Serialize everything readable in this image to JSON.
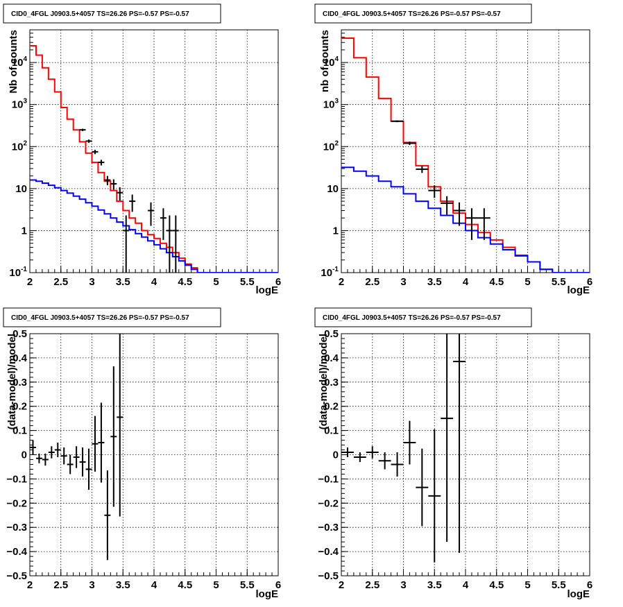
{
  "chart_data": [
    {
      "type": "line",
      "title": "CID0_4FGL J0903.5+4057 TS=26.26 PS=-0.57 PS=-0.57",
      "xlabel": "logE",
      "ylabel": "Nb of counts",
      "xlim": [
        2,
        6
      ],
      "ylim": [
        0.1,
        60000
      ],
      "yscale": "log",
      "grid": true,
      "x_ticks": [
        "2",
        "2.5",
        "3",
        "3.5",
        "4",
        "4.5",
        "5",
        "5.5",
        "6"
      ],
      "y_ticks": [
        {
          "base": "10",
          "exp": "-1"
        },
        {
          "base": "1",
          "exp": ""
        },
        {
          "base": "10",
          "exp": ""
        },
        {
          "base": "10",
          "exp": "2"
        },
        {
          "base": "10",
          "exp": "3"
        },
        {
          "base": "10",
          "exp": "4"
        }
      ],
      "bin_width": 0.1,
      "series": [
        {
          "color": "#ff0000",
          "style": "step",
          "x": [
            2.0,
            2.1,
            2.2,
            2.3,
            2.4,
            2.5,
            2.6,
            2.7,
            2.8,
            2.9,
            3.0,
            3.1,
            3.2,
            3.3,
            3.4,
            3.5,
            3.6,
            3.7,
            3.8,
            3.9,
            4.0,
            4.1,
            4.2,
            4.3,
            4.4,
            4.5,
            4.6,
            4.7,
            4.8,
            4.9,
            5.0,
            5.1,
            5.2,
            5.3,
            5.4,
            5.5,
            5.6,
            5.7,
            5.8,
            5.9
          ],
          "y": [
            25000,
            15000,
            7500,
            4000,
            2000,
            850,
            450,
            250,
            130,
            70,
            42,
            24,
            15,
            9,
            5,
            3,
            2,
            1.5,
            1,
            0.8,
            0.65,
            0.5,
            0.4,
            0.3,
            0.22,
            0.16,
            0.13,
            0.1,
            0.1,
            0.1,
            0.1,
            0.1,
            0.1,
            0.1,
            0.1,
            0.1,
            0.1,
            0.1,
            0.1,
            0.1
          ]
        },
        {
          "color": "#0000ff",
          "style": "step",
          "x": [
            2.0,
            2.1,
            2.2,
            2.3,
            2.4,
            2.5,
            2.6,
            2.7,
            2.8,
            2.9,
            3.0,
            3.1,
            3.2,
            3.3,
            3.4,
            3.5,
            3.6,
            3.7,
            3.8,
            3.9,
            4.0,
            4.1,
            4.2,
            4.3,
            4.4,
            4.5,
            4.6,
            4.7,
            4.8,
            4.9,
            5.0,
            5.1,
            5.2,
            5.3,
            5.4,
            5.5,
            5.6,
            5.7,
            5.8,
            5.9
          ],
          "y": [
            16,
            15,
            13.5,
            12,
            10.5,
            9,
            7.8,
            6.6,
            5.6,
            4.6,
            3.8,
            3.1,
            2.5,
            2,
            1.6,
            1.3,
            1.05,
            0.85,
            0.7,
            0.57,
            0.46,
            0.37,
            0.3,
            0.24,
            0.19,
            0.15,
            0.12,
            0.1,
            0.1,
            0.1,
            0.1,
            0.1,
            0.1,
            0.1,
            0.1,
            0.1,
            0.1,
            0.1,
            0.1,
            0.1
          ]
        },
        {
          "color": "#000000",
          "style": "errorbar",
          "x": [
            2.85,
            2.95,
            3.05,
            3.15,
            3.25,
            3.35,
            3.45,
            3.55,
            3.65,
            3.95,
            4.15,
            4.25,
            4.35
          ],
          "y": [
            250,
            135,
            75,
            42,
            16,
            13,
            8,
            1,
            5,
            3,
            2,
            1,
            1
          ],
          "yerr_low": [
            16,
            12,
            9,
            6.5,
            4,
            3.6,
            2.8,
            0.9,
            2.2,
            1.7,
            1.4,
            0.9,
            0.9
          ],
          "yerr_high": [
            16,
            12,
            9,
            6.5,
            4,
            3.6,
            2.8,
            1.3,
            2.2,
            1.7,
            1.4,
            1.3,
            1.3
          ]
        }
      ]
    },
    {
      "type": "line",
      "title": "CID0_4FGL J0903.5+4057 TS=26.26 PS=-0.57 PS=-0.57",
      "xlabel": "logE",
      "ylabel": "nb of counts",
      "xlim": [
        2,
        6
      ],
      "ylim": [
        0.1,
        60000
      ],
      "yscale": "log",
      "grid": true,
      "x_ticks": [
        "2",
        "2.5",
        "3",
        "3.5",
        "4",
        "4.5",
        "5",
        "5.5",
        "6"
      ],
      "y_ticks": [
        {
          "base": "10",
          "exp": "-1"
        },
        {
          "base": "1",
          "exp": ""
        },
        {
          "base": "10",
          "exp": ""
        },
        {
          "base": "10",
          "exp": "2"
        },
        {
          "base": "10",
          "exp": "3"
        },
        {
          "base": "10",
          "exp": "4"
        }
      ],
      "bin_width": 0.2,
      "series": [
        {
          "color": "#ff0000",
          "style": "step",
          "x": [
            2.0,
            2.2,
            2.4,
            2.6,
            2.8,
            3.0,
            3.2,
            3.4,
            3.6,
            3.8,
            4.0,
            4.2,
            4.4,
            4.6,
            4.8,
            5.0,
            5.2,
            5.4,
            5.6,
            5.8
          ],
          "y": [
            38000,
            13000,
            4500,
            1400,
            400,
            125,
            35,
            11,
            5,
            2.6,
            1.4,
            0.9,
            0.6,
            0.4,
            0.26,
            0.18,
            0.12,
            0.1,
            0.1,
            0.1
          ]
        },
        {
          "color": "#0000ff",
          "style": "step",
          "x": [
            2.0,
            2.2,
            2.4,
            2.6,
            2.8,
            3.0,
            3.2,
            3.4,
            3.6,
            3.8,
            4.0,
            4.2,
            4.4,
            4.6,
            4.8,
            5.0,
            5.2,
            5.4,
            5.6,
            5.8
          ],
          "y": [
            32,
            26,
            20,
            15,
            11,
            7.5,
            5,
            3.4,
            2.3,
            1.5,
            1.0,
            0.68,
            0.48,
            0.35,
            0.25,
            0.18,
            0.12,
            0.1,
            0.1,
            0.1
          ]
        },
        {
          "color": "#000000",
          "style": "errorbar",
          "x": [
            2.9,
            3.1,
            3.3,
            3.5,
            3.7,
            3.9,
            4.1,
            4.3
          ],
          "y": [
            400,
            120,
            29,
            9,
            4.5,
            3,
            2,
            2
          ],
          "yerr_low": [
            20,
            11,
            5.4,
            3,
            2.1,
            1.7,
            1.4,
            1.4
          ],
          "yerr_high": [
            20,
            11,
            5.4,
            3,
            2.1,
            1.7,
            1.4,
            1.4
          ]
        }
      ]
    },
    {
      "type": "scatter",
      "title": "CID0_4FGL J0903.5+4057 TS=26.26 PS=-0.57 PS=-0.57",
      "xlabel": "logE",
      "ylabel": "(data-model)/model",
      "xlim": [
        2,
        6
      ],
      "ylim": [
        -0.5,
        0.5
      ],
      "grid": true,
      "x_ticks": [
        "2",
        "2.5",
        "3",
        "3.5",
        "4",
        "4.5",
        "5",
        "5.5",
        "6"
      ],
      "y_ticks": [
        "−0.5",
        "−0.4",
        "−0.3",
        "−0.2",
        "−0.1",
        "0",
        "0.1",
        "0.2",
        "0.3",
        "0.4",
        "0.5"
      ],
      "bin_width": 0.1,
      "series": [
        {
          "color": "#000000",
          "style": "errorbar",
          "x": [
            2.05,
            2.15,
            2.25,
            2.35,
            2.45,
            2.55,
            2.65,
            2.75,
            2.85,
            2.95,
            3.05,
            3.15,
            3.25,
            3.35,
            3.45
          ],
          "y": [
            0.03,
            -0.015,
            -0.02,
            0.01,
            0.02,
            -0.005,
            -0.04,
            -0.01,
            -0.03,
            -0.06,
            0.045,
            0.05,
            -0.25,
            0.075,
            0.155
          ],
          "yerr": [
            0.03,
            0.02,
            0.025,
            0.025,
            0.03,
            0.035,
            0.04,
            0.045,
            0.06,
            0.085,
            0.115,
            0.165,
            0.185,
            0.29,
            0.41
          ]
        }
      ]
    },
    {
      "type": "scatter",
      "title": "CID0_4FGL J0903.5+4057 TS=26.26 PS=-0.57 PS=-0.57",
      "xlabel": "logE",
      "ylabel": "(data-model)/model",
      "xlim": [
        2,
        6
      ],
      "ylim": [
        -0.5,
        0.5
      ],
      "grid": true,
      "x_ticks": [
        "2",
        "2.5",
        "3",
        "3.5",
        "4",
        "4.5",
        "5",
        "5.5",
        "6"
      ],
      "y_ticks": [
        "−0.5",
        "−0.4",
        "−0.3",
        "−0.2",
        "−0.1",
        "0",
        "0.1",
        "0.2",
        "0.3",
        "0.4",
        "0.5"
      ],
      "bin_width": 0.2,
      "series": [
        {
          "color": "#000000",
          "style": "errorbar",
          "x": [
            2.1,
            2.3,
            2.5,
            2.7,
            2.9,
            3.1,
            3.3,
            3.5,
            3.7,
            3.9
          ],
          "y": [
            0.01,
            -0.01,
            0.01,
            -0.025,
            -0.04,
            0.05,
            -0.135,
            -0.17,
            0.15,
            0.385
          ],
          "yerr": [
            0.02,
            0.02,
            0.025,
            0.035,
            0.05,
            0.09,
            0.16,
            0.275,
            0.51,
            0.79
          ]
        }
      ]
    }
  ]
}
